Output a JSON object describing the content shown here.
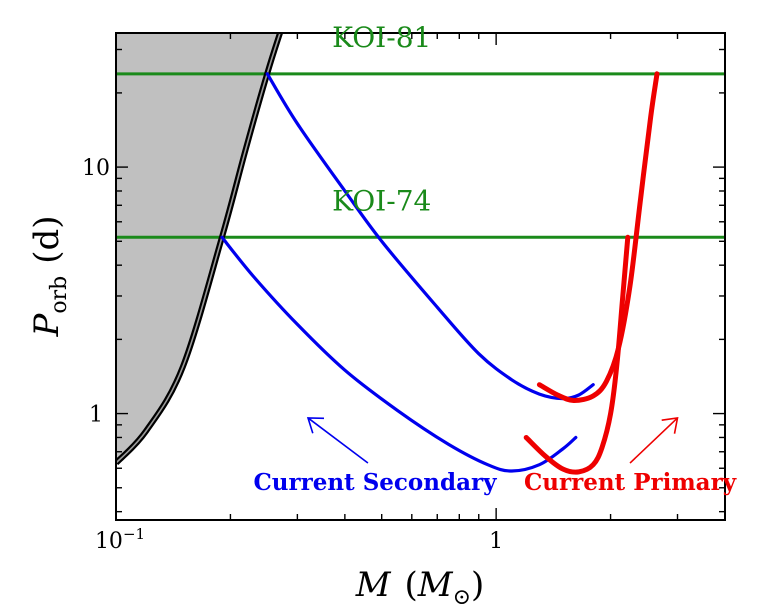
{
  "chart_data": {
    "type": "line",
    "x_scale": "log",
    "y_scale": "log",
    "xlim": [
      0.1,
      4.0
    ],
    "ylim": [
      0.37,
      35
    ],
    "xlabel": {
      "main": "M",
      "paren_open": "(",
      "sub_main": "M",
      "sub_symbol": "⊙",
      "paren_close": ")"
    },
    "ylabel": {
      "main": "P",
      "subscript": "orb",
      "unit": "(d)"
    },
    "x_ticks": [
      {
        "value": 0.1,
        "base": "10",
        "exponent": "−1"
      },
      {
        "value": 1,
        "label": "1"
      }
    ],
    "y_ticks": [
      {
        "value": 1,
        "label": "1"
      },
      {
        "value": 10,
        "label": "10"
      }
    ],
    "horizontal_lines": [
      {
        "name": "KOI-81",
        "label": "KOI-81",
        "y": 23.9,
        "color": "#1a8a1a"
      },
      {
        "name": "KOI-74",
        "label": "KOI-74",
        "y": 5.19,
        "color": "#1a8a1a"
      }
    ],
    "boundary": {
      "name": "forbidden-region",
      "color": "#000000",
      "fill": "#c0c0c0",
      "x": [
        0.1,
        0.12,
        0.15,
        0.19,
        0.22,
        0.25,
        0.27
      ],
      "y": [
        0.63,
        0.85,
        1.55,
        5.2,
        12.0,
        24.0,
        35.0
      ]
    },
    "series": [
      {
        "name": "secondary-koi81",
        "color": "#0000ee",
        "x": [
          0.25,
          0.3,
          0.4,
          0.5,
          0.7,
          0.9,
          1.1,
          1.3,
          1.5,
          1.65,
          1.8
        ],
        "y": [
          23.9,
          15.0,
          8.0,
          5.0,
          2.7,
          1.75,
          1.37,
          1.2,
          1.15,
          1.19,
          1.31
        ]
      },
      {
        "name": "secondary-koi74",
        "color": "#0000ee",
        "x": [
          0.19,
          0.23,
          0.3,
          0.4,
          0.55,
          0.75,
          0.95,
          1.1,
          1.3,
          1.5,
          1.62
        ],
        "y": [
          5.19,
          3.6,
          2.3,
          1.5,
          1.03,
          0.75,
          0.62,
          0.585,
          0.62,
          0.72,
          0.8
        ]
      },
      {
        "name": "primary-koi81",
        "color": "#ee0000",
        "x": [
          1.3,
          1.45,
          1.6,
          1.8,
          1.95,
          2.1,
          2.25,
          2.4,
          2.55,
          2.65
        ],
        "y": [
          1.31,
          1.19,
          1.13,
          1.18,
          1.35,
          1.85,
          3.3,
          7.5,
          16.0,
          23.9
        ]
      },
      {
        "name": "primary-koi74",
        "color": "#ee0000",
        "x": [
          1.2,
          1.35,
          1.5,
          1.65,
          1.8,
          1.9,
          2.0,
          2.08,
          2.15,
          2.22
        ],
        "y": [
          0.8,
          0.67,
          0.595,
          0.58,
          0.62,
          0.73,
          1.0,
          1.6,
          2.9,
          5.19
        ]
      }
    ],
    "annotations": [
      {
        "name": "current-secondary",
        "label": "Current Secondary",
        "color": "#0000ee",
        "text_at": [
          0.48,
          0.49
        ],
        "arrow_from": [
          0.46,
          0.63
        ],
        "arrow_to": [
          0.32,
          0.96
        ]
      },
      {
        "name": "current-primary",
        "label": "Current Primary",
        "color": "#ee0000",
        "text_at": [
          2.25,
          0.49
        ],
        "arrow_from": [
          2.25,
          0.63
        ],
        "arrow_to": [
          3.0,
          0.96
        ]
      }
    ]
  }
}
